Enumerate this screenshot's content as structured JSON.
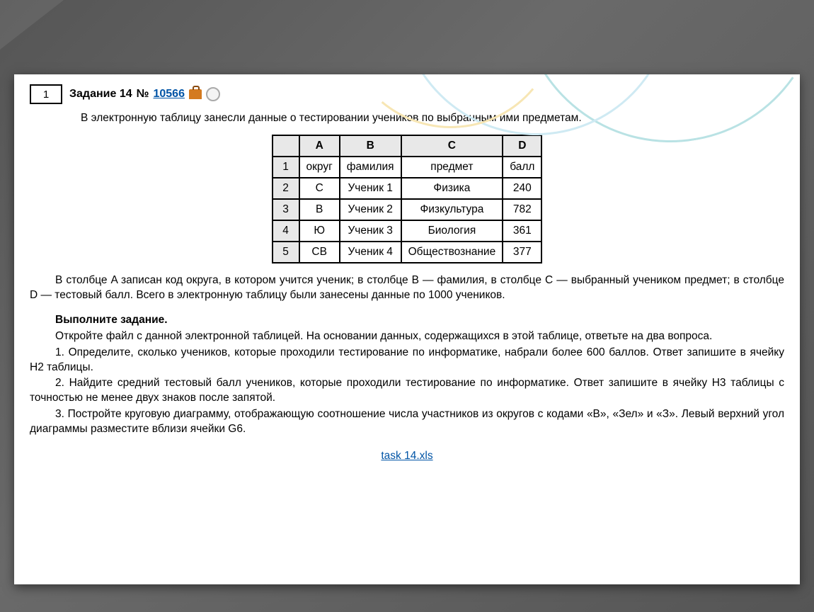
{
  "header": {
    "problem_index": "1",
    "task_label": "Задание 14",
    "numero_sign": "№",
    "task_id": "10566"
  },
  "intro": "В электронную таблицу занесли данные о тестировании учеников по выбранным ими предметам.",
  "table": {
    "col_headers": [
      "A",
      "B",
      "C",
      "D"
    ],
    "row_numbers": [
      "1",
      "2",
      "3",
      "4",
      "5"
    ],
    "rows": [
      [
        "округ",
        "фамилия",
        "предмет",
        "балл"
      ],
      [
        "С",
        "Ученик 1",
        "Физика",
        "240"
      ],
      [
        "В",
        "Ученик 2",
        "Физкультура",
        "782"
      ],
      [
        "Ю",
        "Ученик 3",
        "Биология",
        "361"
      ],
      [
        "СВ",
        "Ученик 4",
        "Обществознание",
        "377"
      ]
    ],
    "header_bg": "#e8e8e8",
    "border_color": "#000000",
    "font_size_pt": 12
  },
  "explain": "В столбце A записан код округа, в котором учится ученик; в столбце B — фамилия, в столбце C — выбранный учеником предмет; в столбце D — тестовый балл. Всего в электронную таблицу были занесены данные по 1000 учеников.",
  "task_heading": "Выполните задание.",
  "task_lines": [
    "Откройте файл с данной электронной таблицей. На основании данных, содержащихся в этой таблице, ответьте на два вопроса.",
    "1. Определите, сколько учеников, которые проходили тестирование по информатике, набрали более 600 баллов. Ответ запишите в ячейку H2 таблицы.",
    "2. Найдите средний тестовый балл учеников, которые проходили тестирование по информатике. Ответ запишите в ячейку H3 таблицы с точностью не менее двух знаков после запятой.",
    "3. Постройте круговую диаграмму, отображающую соотношение числа участников из округов с кодами «В», «Зел» и «З». Левый верхний угол диаграммы разместите вблизи ячейки G6."
  ],
  "download": {
    "label": "task 14.xls"
  },
  "colors": {
    "link": "#0054a6",
    "page_bg": "#ffffff",
    "stage_bg": "#5c5c5c"
  }
}
